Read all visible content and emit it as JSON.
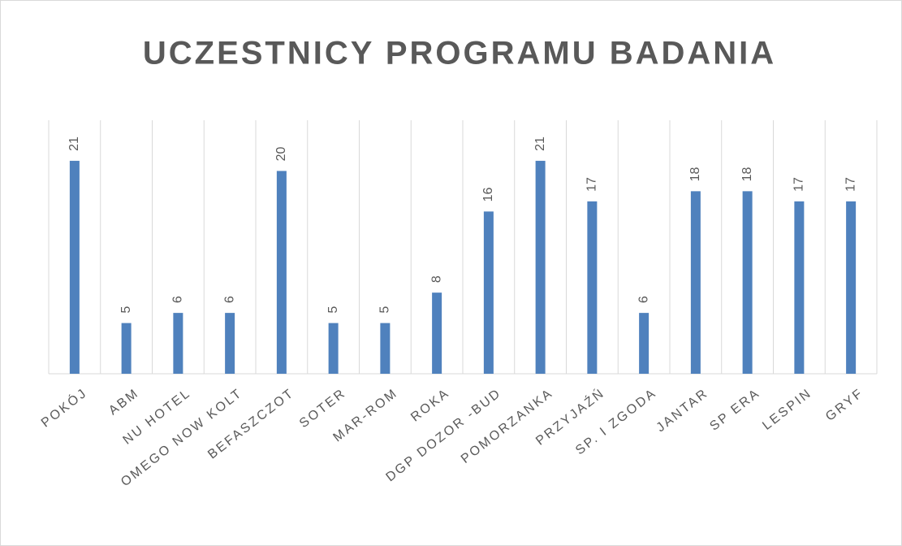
{
  "chart_data": {
    "type": "bar",
    "title": "UCZESTNICY PROGRAMU BADANIA",
    "categories": [
      "POKÓJ",
      "ABM",
      "NU HOTEL",
      "OMEGO NOW KOLT",
      "BEFASZCZOT",
      "SOTER",
      "MAR-ROM",
      "ROKA",
      "DGP DOZOR -BUD",
      "POMORZANKA",
      "PRZYJAŹŃ",
      "SP. I ZGODA",
      "JANTAR",
      "SP ERA",
      "LESPIN",
      "GRYF"
    ],
    "values": [
      21,
      5,
      6,
      6,
      20,
      5,
      5,
      8,
      16,
      21,
      17,
      6,
      18,
      18,
      17,
      17
    ],
    "color": "#4f81bd",
    "ylim": [
      0,
      25
    ]
  }
}
